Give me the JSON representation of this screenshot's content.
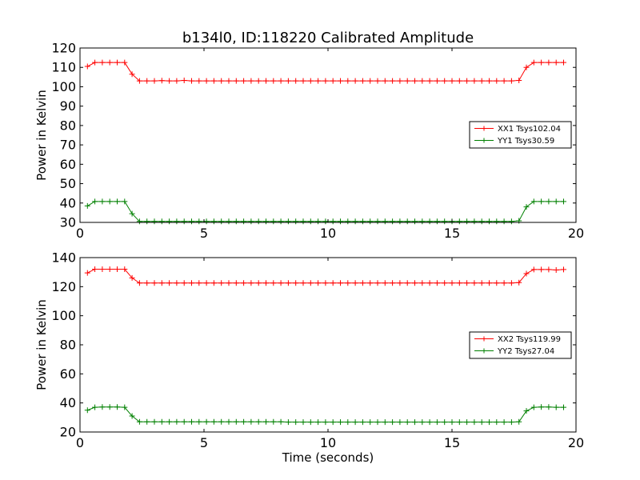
{
  "title": "b134l0, ID:118220 Calibrated Amplitude",
  "colors": {
    "xx": "#ff0000",
    "yy": "#008000"
  },
  "chart_data": [
    {
      "type": "line",
      "ylabel": "Power in Kelvin",
      "xlabel": "",
      "xlim": [
        0,
        20
      ],
      "ylim": [
        30,
        120
      ],
      "xticks": [
        0,
        5,
        10,
        15,
        20
      ],
      "yticks": [
        30,
        40,
        50,
        60,
        70,
        80,
        90,
        100,
        110,
        120
      ],
      "legend_position": "right",
      "series": [
        {
          "name": "XX1 Tsys102.04",
          "color": "#ff0000",
          "x": [
            0.3,
            0.6,
            0.9,
            1.2,
            1.5,
            1.8,
            2.1,
            2.4,
            2.7,
            3.0,
            3.3,
            3.6,
            3.9,
            4.2,
            4.5,
            4.8,
            5.1,
            5.4,
            5.7,
            6.0,
            6.3,
            6.6,
            6.9,
            7.2,
            7.5,
            7.8,
            8.1,
            8.4,
            8.7,
            9.0,
            9.3,
            9.6,
            9.9,
            10.2,
            10.5,
            10.8,
            11.1,
            11.4,
            11.7,
            12.0,
            12.3,
            12.6,
            12.9,
            13.2,
            13.5,
            13.8,
            14.1,
            14.4,
            14.7,
            15.0,
            15.3,
            15.6,
            15.9,
            16.2,
            16.5,
            16.8,
            17.1,
            17.4,
            17.7,
            18.0,
            18.3,
            18.6,
            18.9,
            19.2,
            19.5
          ],
          "y": [
            110.5,
            112.5,
            112.5,
            112.5,
            112.5,
            112.5,
            106.5,
            103.0,
            103.0,
            103.0,
            103.2,
            103.0,
            103.0,
            103.3,
            103.0,
            103.0,
            103.0,
            103.0,
            103.0,
            103.0,
            103.0,
            103.0,
            103.0,
            103.0,
            103.0,
            103.0,
            103.0,
            103.0,
            103.0,
            103.0,
            103.0,
            103.0,
            103.0,
            103.0,
            103.0,
            103.0,
            103.0,
            103.0,
            103.0,
            103.0,
            103.0,
            103.0,
            103.0,
            103.0,
            103.0,
            103.0,
            103.0,
            103.0,
            103.0,
            103.0,
            103.0,
            103.0,
            103.0,
            103.0,
            103.0,
            103.0,
            103.0,
            103.0,
            103.3,
            110.0,
            112.5,
            112.5,
            112.5,
            112.5,
            112.5
          ]
        },
        {
          "name": "YY1 Tsys30.59",
          "color": "#008000",
          "x": [
            0.3,
            0.6,
            0.9,
            1.2,
            1.5,
            1.8,
            2.1,
            2.4,
            2.7,
            3.0,
            3.3,
            3.6,
            3.9,
            4.2,
            4.5,
            4.8,
            5.1,
            5.4,
            5.7,
            6.0,
            6.3,
            6.6,
            6.9,
            7.2,
            7.5,
            7.8,
            8.1,
            8.4,
            8.7,
            9.0,
            9.3,
            9.6,
            9.9,
            10.2,
            10.5,
            10.8,
            11.1,
            11.4,
            11.7,
            12.0,
            12.3,
            12.6,
            12.9,
            13.2,
            13.5,
            13.8,
            14.1,
            14.4,
            14.7,
            15.0,
            15.3,
            15.6,
            15.9,
            16.2,
            16.5,
            16.8,
            17.1,
            17.4,
            17.7,
            18.0,
            18.3,
            18.6,
            18.9,
            19.2,
            19.5
          ],
          "y": [
            38.5,
            40.8,
            40.8,
            40.8,
            40.8,
            40.8,
            34.5,
            30.5,
            30.5,
            30.5,
            30.5,
            30.5,
            30.5,
            30.5,
            30.5,
            30.5,
            30.5,
            30.5,
            30.5,
            30.5,
            30.5,
            30.5,
            30.5,
            30.5,
            30.5,
            30.5,
            30.5,
            30.5,
            30.5,
            30.5,
            30.5,
            30.5,
            30.5,
            30.5,
            30.5,
            30.5,
            30.5,
            30.5,
            30.5,
            30.5,
            30.5,
            30.5,
            30.5,
            30.5,
            30.5,
            30.5,
            30.5,
            30.5,
            30.5,
            30.5,
            30.5,
            30.5,
            30.5,
            30.5,
            30.5,
            30.5,
            30.5,
            30.5,
            30.8,
            38.0,
            40.8,
            40.8,
            40.8,
            40.8,
            40.8
          ]
        }
      ]
    },
    {
      "type": "line",
      "ylabel": "Power in Kelvin",
      "xlabel": "Time (seconds)",
      "xlim": [
        0,
        20
      ],
      "ylim": [
        20,
        140
      ],
      "xticks": [
        0,
        5,
        10,
        15,
        20
      ],
      "yticks": [
        20,
        40,
        60,
        80,
        100,
        120,
        140
      ],
      "legend_position": "right",
      "series": [
        {
          "name": "XX2 Tsys119.99",
          "color": "#ff0000",
          "x": [
            0.3,
            0.6,
            0.9,
            1.2,
            1.5,
            1.8,
            2.1,
            2.4,
            2.7,
            3.0,
            3.3,
            3.6,
            3.9,
            4.2,
            4.5,
            4.8,
            5.1,
            5.4,
            5.7,
            6.0,
            6.3,
            6.6,
            6.9,
            7.2,
            7.5,
            7.8,
            8.1,
            8.4,
            8.7,
            9.0,
            9.3,
            9.6,
            9.9,
            10.2,
            10.5,
            10.8,
            11.1,
            11.4,
            11.7,
            12.0,
            12.3,
            12.6,
            12.9,
            13.2,
            13.5,
            13.8,
            14.1,
            14.4,
            14.7,
            15.0,
            15.3,
            15.6,
            15.9,
            16.2,
            16.5,
            16.8,
            17.1,
            17.4,
            17.7,
            18.0,
            18.3,
            18.6,
            18.9,
            19.2,
            19.5
          ],
          "y": [
            129.5,
            132.0,
            132.0,
            132.0,
            132.0,
            132.0,
            126.0,
            122.5,
            122.5,
            122.5,
            122.5,
            122.5,
            122.5,
            122.5,
            122.5,
            122.5,
            122.5,
            122.5,
            122.5,
            122.5,
            122.5,
            122.5,
            122.5,
            122.5,
            122.5,
            122.5,
            122.5,
            122.5,
            122.5,
            122.5,
            122.5,
            122.5,
            122.5,
            122.5,
            122.5,
            122.5,
            122.5,
            122.5,
            122.5,
            122.5,
            122.5,
            122.5,
            122.5,
            122.5,
            122.5,
            122.5,
            122.5,
            122.5,
            122.5,
            122.5,
            122.5,
            122.5,
            122.5,
            122.5,
            122.5,
            122.5,
            122.5,
            122.5,
            122.8,
            129.0,
            131.8,
            131.8,
            131.8,
            131.5,
            131.8
          ]
        },
        {
          "name": "YY2 Tsys27.04",
          "color": "#008000",
          "x": [
            0.3,
            0.6,
            0.9,
            1.2,
            1.5,
            1.8,
            2.1,
            2.4,
            2.7,
            3.0,
            3.3,
            3.6,
            3.9,
            4.2,
            4.5,
            4.8,
            5.1,
            5.4,
            5.7,
            6.0,
            6.3,
            6.6,
            6.9,
            7.2,
            7.5,
            7.8,
            8.1,
            8.4,
            8.7,
            9.0,
            9.3,
            9.6,
            9.9,
            10.2,
            10.5,
            10.8,
            11.1,
            11.4,
            11.7,
            12.0,
            12.3,
            12.6,
            12.9,
            13.2,
            13.5,
            13.8,
            14.1,
            14.4,
            14.7,
            15.0,
            15.3,
            15.6,
            15.9,
            16.2,
            16.5,
            16.8,
            17.1,
            17.4,
            17.7,
            18.0,
            18.3,
            18.6,
            18.9,
            19.2,
            19.5
          ],
          "y": [
            35.0,
            37.0,
            37.2,
            37.2,
            37.2,
            37.0,
            31.0,
            27.0,
            27.0,
            27.0,
            27.0,
            27.0,
            27.0,
            27.0,
            27.0,
            27.0,
            27.0,
            27.0,
            27.0,
            27.0,
            27.0,
            27.0,
            27.0,
            27.0,
            27.0,
            27.0,
            27.0,
            26.8,
            26.8,
            26.8,
            26.8,
            26.8,
            26.8,
            26.8,
            26.8,
            26.8,
            26.8,
            26.8,
            26.8,
            26.8,
            26.8,
            26.8,
            26.8,
            26.8,
            26.8,
            26.8,
            26.8,
            26.8,
            26.8,
            26.8,
            26.8,
            26.8,
            26.8,
            26.8,
            26.8,
            26.8,
            26.8,
            26.8,
            27.0,
            34.5,
            37.0,
            37.2,
            37.2,
            37.0,
            37.0
          ]
        }
      ]
    }
  ]
}
